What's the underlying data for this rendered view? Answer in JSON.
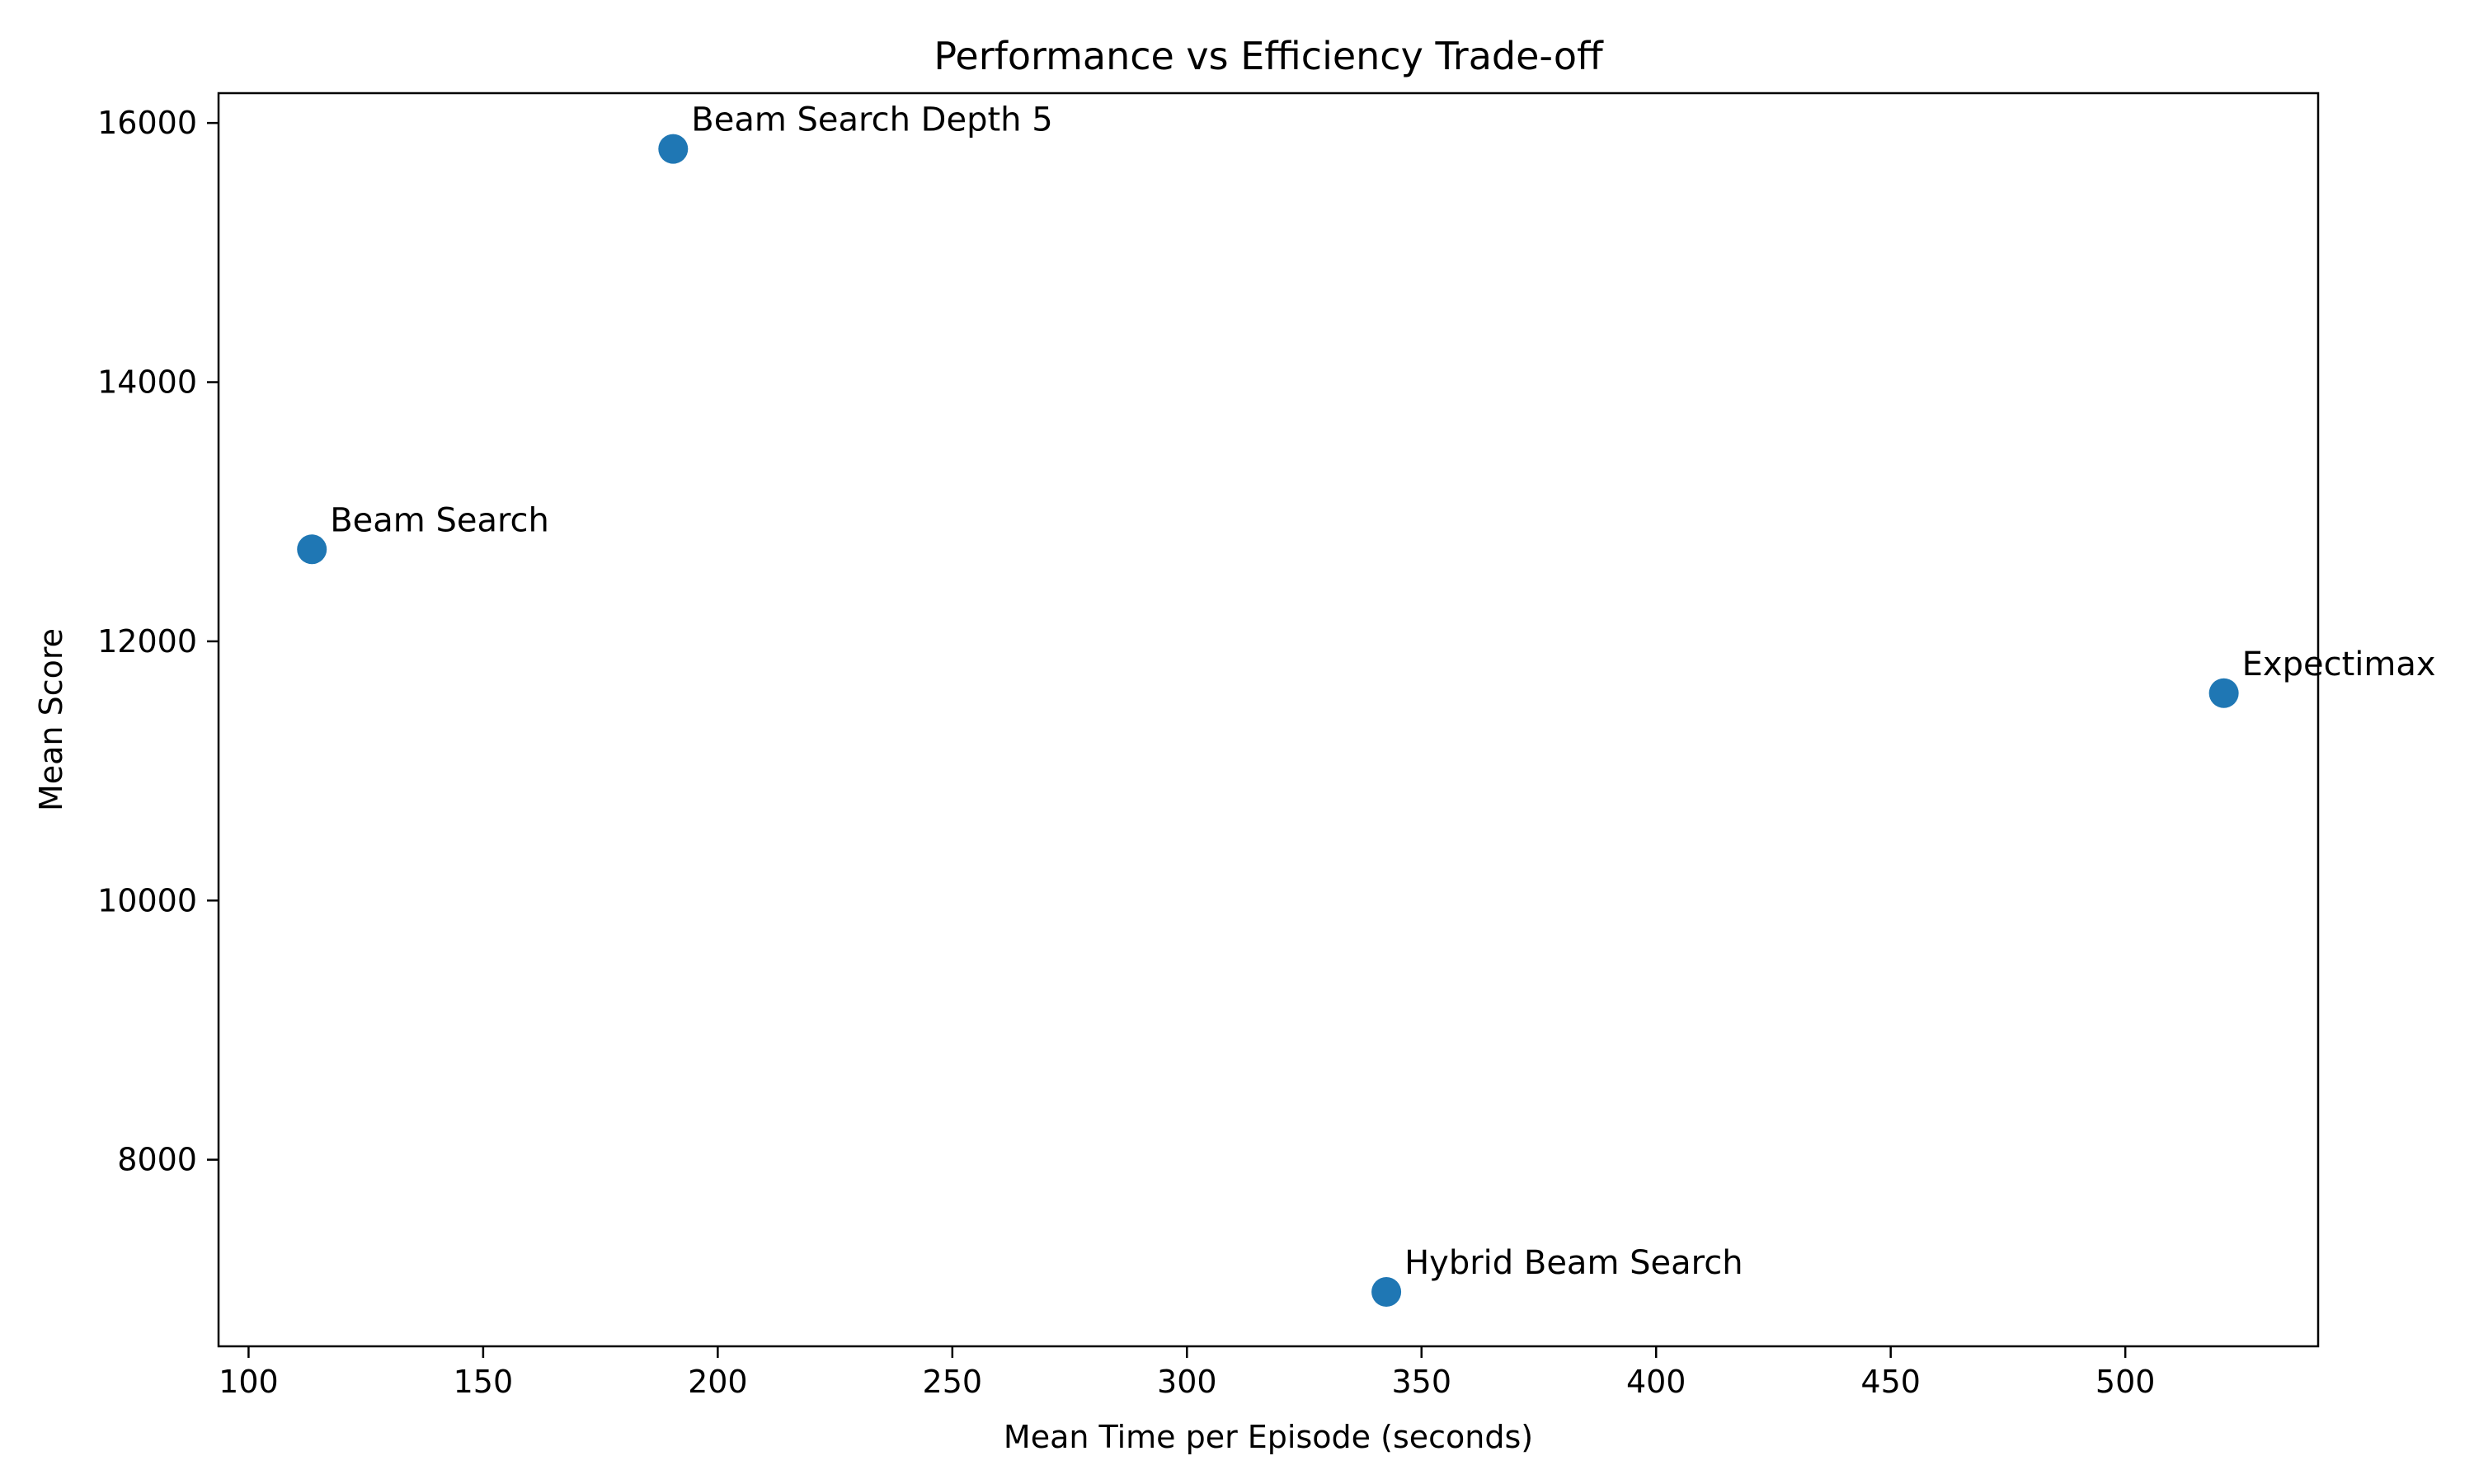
{
  "chart_data": {
    "type": "scatter",
    "title": "Performance vs Efficiency Trade-off",
    "xlabel": "Mean Time per Episode (seconds)",
    "ylabel": "Mean Score",
    "xlim": [
      93.6,
      541.1
    ],
    "ylim": [
      6560,
      16230
    ],
    "xticks": [
      100,
      150,
      200,
      250,
      300,
      350,
      400,
      450,
      500
    ],
    "yticks": [
      8000,
      10000,
      12000,
      14000,
      16000
    ],
    "grid": false,
    "marker_color": "#1f77b4",
    "points": [
      {
        "label": "Beam Search",
        "x": 113.5,
        "y": 12710
      },
      {
        "label": "Beam Search Depth 5",
        "x": 190.5,
        "y": 15800
      },
      {
        "label": "Hybrid Beam Search",
        "x": 342.5,
        "y": 6980
      },
      {
        "label": "Expectimax",
        "x": 521,
        "y": 11600
      }
    ]
  }
}
